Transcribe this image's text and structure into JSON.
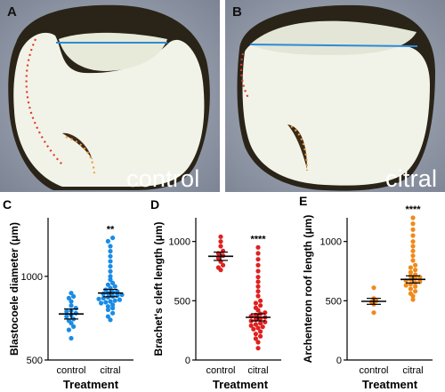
{
  "figure": {
    "panels": [
      {
        "letter": "A",
        "label": "control"
      },
      {
        "letter": "B",
        "label": "citral"
      }
    ],
    "colors": {
      "measure_line": "#2e8ad6",
      "blastocoele_trace": "#e03a2a",
      "cleft_trace": "#f19a3a"
    }
  },
  "chart_data": [
    {
      "panel": "C",
      "type": "scatter",
      "ylabel": "Blastocoele diameter (μm)",
      "xlabel": "Treatment",
      "categories": [
        "control",
        "citral"
      ],
      "yticks": [
        500,
        1000
      ],
      "ylim": [
        500,
        1350
      ],
      "significance": "**",
      "color": "#1a8ce6",
      "series": [
        {
          "category": "control",
          "mean": 775,
          "sem": 30,
          "values": [
            630,
            680,
            700,
            720,
            735,
            745,
            760,
            770,
            780,
            790,
            795,
            810,
            825,
            850,
            870,
            880,
            900
          ]
        },
        {
          "category": "citral",
          "mean": 900,
          "sem": 22,
          "values": [
            740,
            760,
            780,
            800,
            810,
            820,
            830,
            840,
            845,
            850,
            855,
            860,
            865,
            870,
            875,
            880,
            885,
            890,
            895,
            900,
            905,
            910,
            920,
            930,
            940,
            950,
            960,
            980,
            1000,
            1030,
            1060,
            1090,
            1120,
            1150,
            1180,
            1210,
            1230
          ]
        }
      ]
    },
    {
      "panel": "D",
      "type": "scatter",
      "ylabel": "Brachet's cleft length (μm)",
      "xlabel": "Treatment",
      "categories": [
        "control",
        "citral"
      ],
      "yticks": [
        0,
        500,
        1000
      ],
      "ylim": [
        0,
        1200
      ],
      "significance": "****",
      "color": "#e02020",
      "series": [
        {
          "category": "control",
          "mean": 875,
          "sem": 35,
          "values": [
            760,
            780,
            800,
            830,
            860,
            880,
            900,
            920,
            960,
            1000,
            1040
          ]
        },
        {
          "category": "citral",
          "mean": 360,
          "sem": 30,
          "values": [
            100,
            150,
            180,
            200,
            220,
            240,
            260,
            270,
            280,
            290,
            300,
            310,
            320,
            330,
            340,
            350,
            360,
            370,
            380,
            390,
            400,
            420,
            440,
            460,
            480,
            500,
            540,
            580,
            620,
            660,
            700,
            750,
            800,
            850,
            900,
            950
          ]
        }
      ]
    },
    {
      "panel": "E",
      "type": "scatter",
      "ylabel": "Archenteron roof length (μm)",
      "xlabel": "Treatment",
      "categories": [
        "control",
        "citral"
      ],
      "yticks": [
        0,
        500,
        1000
      ],
      "ylim": [
        0,
        1200
      ],
      "significance": "****",
      "color": "#f08a1c",
      "series": [
        {
          "category": "control",
          "mean": 495,
          "sem": 25,
          "values": [
            400,
            470,
            490,
            500,
            520,
            610
          ]
        },
        {
          "category": "citral",
          "mean": 680,
          "sem": 30,
          "values": [
            510,
            540,
            560,
            580,
            600,
            620,
            630,
            640,
            650,
            660,
            670,
            680,
            690,
            700,
            710,
            720,
            740,
            760,
            780,
            800,
            840,
            880,
            920,
            960,
            1000,
            1050,
            1100,
            1150,
            1200
          ]
        }
      ]
    }
  ]
}
